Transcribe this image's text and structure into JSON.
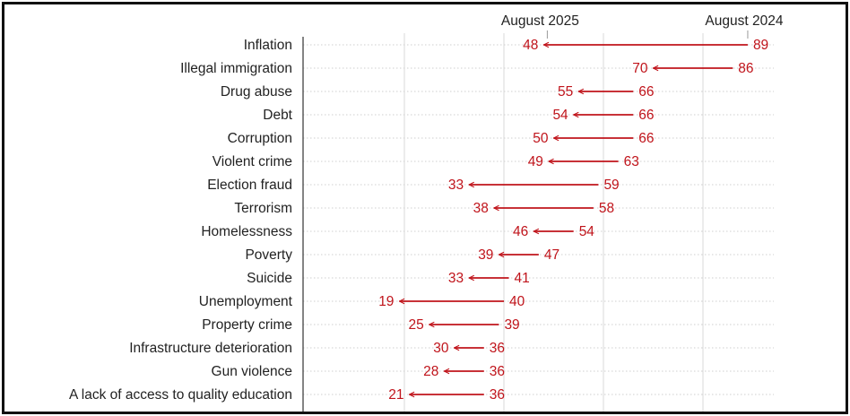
{
  "chart_data": {
    "type": "arrow-dot",
    "series": [
      {
        "name": "August 2024"
      },
      {
        "name": "August 2025"
      }
    ],
    "categories": [
      "Inflation",
      "Illegal immigration",
      "Drug abuse",
      "Debt",
      "Corruption",
      "Violent crime",
      "Election fraud",
      "Terrorism",
      "Homelessness",
      "Poverty",
      "Suicide",
      "Unemployment",
      "Property crime",
      "Infrastructure deterioration",
      "Gun violence",
      "A lack of access to quality education"
    ],
    "rows": [
      {
        "from": 89,
        "to": 48
      },
      {
        "from": 86,
        "to": 70
      },
      {
        "from": 66,
        "to": 55
      },
      {
        "from": 66,
        "to": 54
      },
      {
        "from": 66,
        "to": 50
      },
      {
        "from": 63,
        "to": 49
      },
      {
        "from": 59,
        "to": 33
      },
      {
        "from": 58,
        "to": 38
      },
      {
        "from": 54,
        "to": 46
      },
      {
        "from": 47,
        "to": 39
      },
      {
        "from": 41,
        "to": 33
      },
      {
        "from": 40,
        "to": 19
      },
      {
        "from": 39,
        "to": 25
      },
      {
        "from": 36,
        "to": 30
      },
      {
        "from": 36,
        "to": 28
      },
      {
        "from": 36,
        "to": 21
      }
    ],
    "xlim": [
      0,
      100
    ],
    "grid": true,
    "colors": {
      "arrow": "#c0141b",
      "label_text": "#222222",
      "grid": "#d9d9d9",
      "axis": "#333333",
      "border": "#111111"
    }
  }
}
